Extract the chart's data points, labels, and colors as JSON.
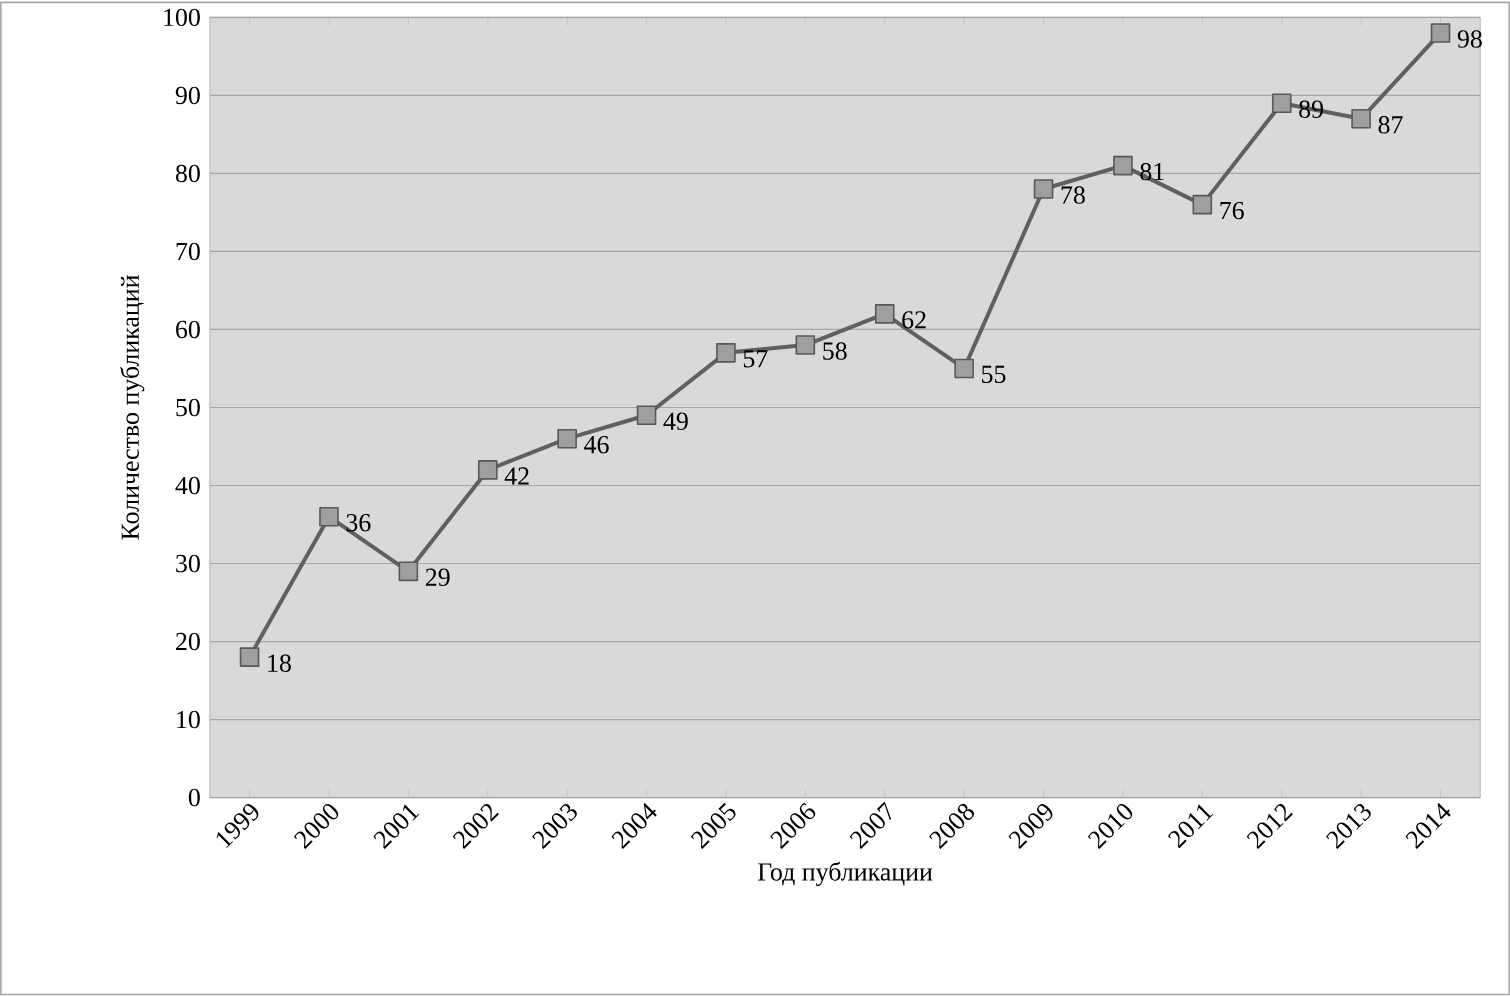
{
  "chart_data": {
    "type": "line",
    "xlabel": "Год публикации",
    "ylabel": "Количество публикаций",
    "categories": [
      "1999",
      "2000",
      "2001",
      "2002",
      "2003",
      "2004",
      "2005",
      "2006",
      "2007",
      "2008",
      "2009",
      "2010",
      "2011",
      "2012",
      "2013",
      "2014"
    ],
    "values": [
      18,
      36,
      29,
      42,
      46,
      49,
      57,
      58,
      62,
      55,
      78,
      81,
      76,
      89,
      87,
      98
    ],
    "color": "#606060",
    "ylim": [
      0,
      100
    ],
    "yticks": [
      0,
      10,
      20,
      30,
      40,
      50,
      60,
      70,
      80,
      90,
      100
    ],
    "grid": "y",
    "marker": "square",
    "line_style": "solid",
    "data_labels": true
  }
}
